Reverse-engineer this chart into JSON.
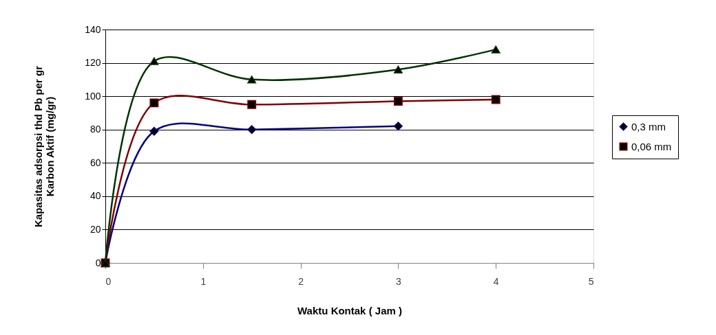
{
  "chart_data": {
    "type": "line",
    "xlabel": "Waktu Kontak ( Jam )",
    "ylabel": "Kapasitas adsorpsi thd Pb per gr Karbon Aktif (mg/gr)",
    "series": [
      {
        "name": "0,3 mm",
        "color": "#000080",
        "marker": "diamond",
        "x": [
          0,
          0.5,
          1.5,
          3
        ],
        "values": [
          0,
          79,
          80,
          82
        ]
      },
      {
        "name": "0,06 mm",
        "color": "#800000",
        "marker": "square",
        "x": [
          0,
          0.5,
          1.5,
          3,
          4
        ],
        "values": [
          0,
          96,
          95,
          97,
          98
        ]
      },
      {
        "color": "#003300",
        "marker": "triangle",
        "x": [
          0,
          0.5,
          1.5,
          3,
          4
        ],
        "values": [
          0,
          121,
          110,
          116,
          128
        ]
      }
    ],
    "xlim": [
      0,
      5
    ],
    "xticks": [
      0,
      1,
      2,
      3,
      4,
      5
    ],
    "ylim": [
      0,
      140
    ],
    "yticks": [
      0,
      20,
      40,
      60,
      80,
      100,
      120,
      140
    ],
    "grid": "y",
    "legend": "right",
    "line_style": "solid"
  }
}
